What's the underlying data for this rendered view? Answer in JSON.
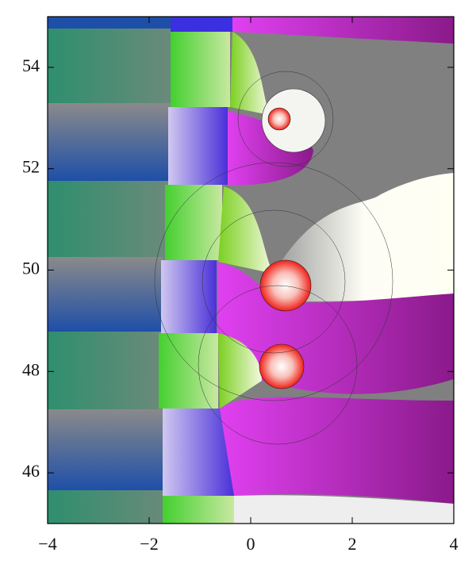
{
  "chart_data": {
    "type": "domain-coloring",
    "xlim": [
      -4,
      4
    ],
    "ylim": [
      45,
      55
    ],
    "xticks": [
      {
        "value": -4,
        "label": "−4"
      },
      {
        "value": -2,
        "label": "−2"
      },
      0,
      2,
      4
    ],
    "yticks": [
      46,
      48,
      50,
      52,
      54
    ]
  }
}
